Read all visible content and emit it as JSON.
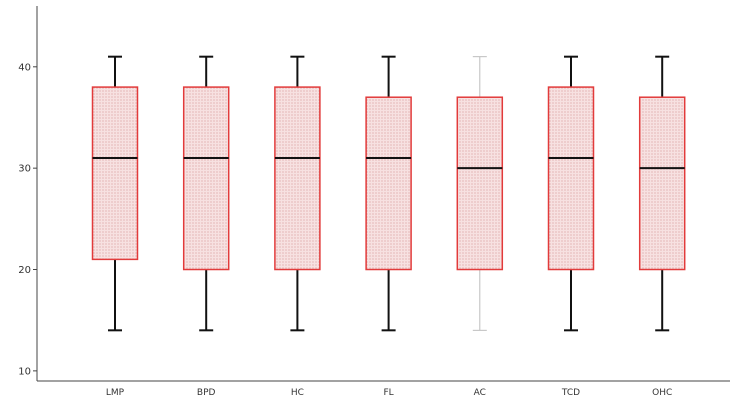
{
  "chart_data": {
    "type": "box",
    "title": "",
    "xlabel": "",
    "ylabel": "",
    "ylim": [
      9,
      46
    ],
    "yticks": [
      10,
      20,
      30,
      40
    ],
    "grid": false,
    "categories": [
      "LMP",
      "BPD",
      "HC",
      "FL",
      "AC",
      "TCD",
      "OHC"
    ],
    "boxes": [
      {
        "label": "LMP",
        "min": 14,
        "q1": 21,
        "median": 31,
        "q3": 38,
        "max": 41
      },
      {
        "label": "BPD",
        "min": 14,
        "q1": 20,
        "median": 31,
        "q3": 38,
        "max": 41
      },
      {
        "label": "HC",
        "min": 14,
        "q1": 20,
        "median": 31,
        "q3": 38,
        "max": 41
      },
      {
        "label": "FL",
        "min": 14,
        "q1": 20,
        "median": 31,
        "q3": 37,
        "max": 41
      },
      {
        "label": "AC",
        "min": 14,
        "q1": 20,
        "median": 30,
        "q3": 37,
        "max": 41
      },
      {
        "label": "TCD",
        "min": 14,
        "q1": 20,
        "median": 31,
        "q3": 38,
        "max": 41
      },
      {
        "label": "OHC",
        "min": 14,
        "q1": 20,
        "median": 30,
        "q3": 37,
        "max": 41
      }
    ],
    "colors": {
      "box_edge": "#e23b3b",
      "box_fill": "#f4d6d6",
      "whisker": "#111111",
      "whisker_light": "#bdbdbd",
      "median": "#111111",
      "axis": "#444444"
    }
  }
}
